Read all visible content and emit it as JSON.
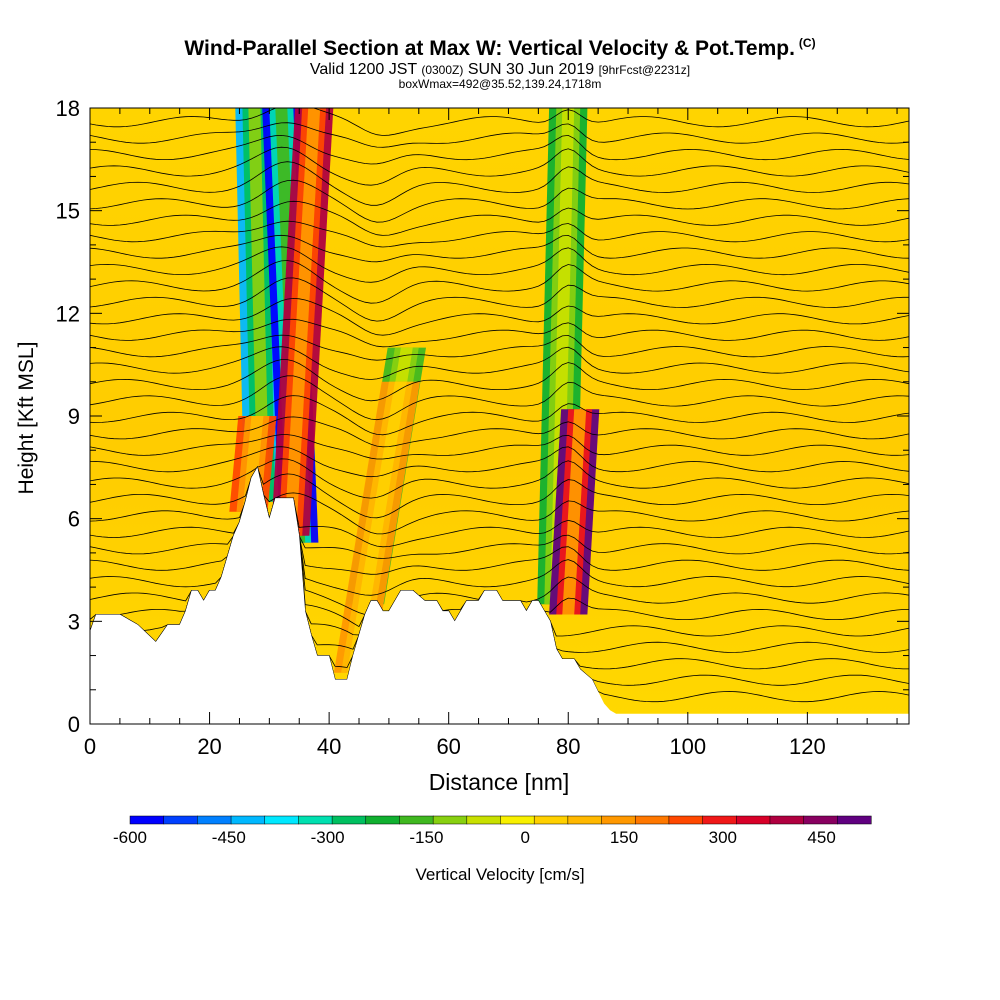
{
  "chart_data": {
    "type": "heatmap",
    "title": "Wind-Parallel Section at Max W: Vertical Velocity & Pot.Temp.",
    "title_mark": "(C)",
    "subtitle_valid": "Valid 1200 JST",
    "subtitle_utc": "(0300Z)",
    "subtitle_date": "SUN 30 Jun 2019",
    "subtitle_fcst": "[9hrFcst@2231z]",
    "subtitle2": "boxWmax=492@35.52,139.24,1718m",
    "xlabel": "Distance [nm]",
    "ylabel": "Height [Kft MSL]",
    "xlim": [
      0,
      137
    ],
    "ylim": [
      0,
      18
    ],
    "x_ticks": [
      "0",
      "20",
      "40",
      "60",
      "80",
      "100",
      "120"
    ],
    "x_tick_values": [
      0,
      20,
      40,
      60,
      80,
      100,
      120
    ],
    "y_ticks": [
      "0",
      "3",
      "6",
      "9",
      "12",
      "15",
      "18"
    ],
    "y_tick_values": [
      0,
      3,
      6,
      9,
      12,
      15,
      18
    ],
    "colorbar": {
      "label": "Vertical Velocity [cm/s]",
      "range": [
        -600,
        525
      ],
      "tick_labels": [
        "-600",
        "-450",
        "-300",
        "-150",
        "0",
        "150",
        "300",
        "450"
      ],
      "tick_values": [
        -600,
        -450,
        -300,
        -150,
        0,
        150,
        300,
        450
      ],
      "colors": [
        "#0000ff",
        "#0040ff",
        "#0080ff",
        "#00b8ff",
        "#00e8ff",
        "#00e0b0",
        "#00c060",
        "#10b030",
        "#40b820",
        "#88d010",
        "#c8e000",
        "#f8f000",
        "#ffd000",
        "#ffb800",
        "#ff9800",
        "#ff7800",
        "#ff4800",
        "#f01818",
        "#d80028",
        "#b00040",
        "#880060",
        "#600080"
      ]
    },
    "terrain_kft": [
      [
        0,
        2.7
      ],
      [
        1,
        3.2
      ],
      [
        5,
        3.2
      ],
      [
        8,
        2.9
      ],
      [
        11,
        2.4
      ],
      [
        13,
        2.9
      ],
      [
        15,
        2.9
      ],
      [
        16,
        3.3
      ],
      [
        17,
        3.9
      ],
      [
        18,
        3.9
      ],
      [
        19,
        3.6
      ],
      [
        20,
        3.9
      ],
      [
        21,
        3.9
      ],
      [
        22,
        4.3
      ],
      [
        23,
        4.9
      ],
      [
        24,
        5.5
      ],
      [
        25,
        5.9
      ],
      [
        26,
        6.5
      ],
      [
        27,
        7.2
      ],
      [
        28,
        7.5
      ],
      [
        29,
        6.7
      ],
      [
        30,
        6.0
      ],
      [
        31,
        6.6
      ],
      [
        34,
        6.6
      ],
      [
        35,
        5.5
      ],
      [
        36,
        3.3
      ],
      [
        37,
        2.6
      ],
      [
        38,
        2.0
      ],
      [
        40,
        2.0
      ],
      [
        41,
        1.3
      ],
      [
        43,
        1.3
      ],
      [
        44,
        2.0
      ],
      [
        45,
        2.6
      ],
      [
        46,
        3.2
      ],
      [
        47,
        3.6
      ],
      [
        48,
        3.6
      ],
      [
        49,
        3.3
      ],
      [
        50,
        3.3
      ],
      [
        51,
        3.6
      ],
      [
        52,
        3.9
      ],
      [
        54,
        3.9
      ],
      [
        56,
        3.6
      ],
      [
        58,
        3.6
      ],
      [
        59,
        3.3
      ],
      [
        60,
        3.3
      ],
      [
        61,
        3.0
      ],
      [
        62,
        3.3
      ],
      [
        63,
        3.6
      ],
      [
        65,
        3.6
      ],
      [
        66,
        3.9
      ],
      [
        68,
        3.9
      ],
      [
        69,
        3.6
      ],
      [
        72,
        3.6
      ],
      [
        73,
        3.3
      ],
      [
        74,
        3.6
      ],
      [
        75,
        3.6
      ],
      [
        77,
        3.0
      ],
      [
        78,
        2.2
      ],
      [
        79,
        1.9
      ],
      [
        81,
        1.9
      ],
      [
        82,
        1.6
      ],
      [
        84,
        1.3
      ],
      [
        86,
        0.6
      ],
      [
        87,
        0.4
      ],
      [
        88,
        0.3
      ],
      [
        137,
        0.3
      ]
    ],
    "updrafts": [
      {
        "x_base": 26.5,
        "x_top": 28,
        "z_bottom": 6.2,
        "z_top": 9.0,
        "w": 250
      },
      {
        "x_base": 33.5,
        "x_top": 37.5,
        "z_bottom": 5.5,
        "z_top": 18,
        "w": 420
      },
      {
        "x_base": 44,
        "x_top": 52,
        "z_bottom": 1.5,
        "z_top": 10,
        "w": 120
      },
      {
        "x_base": 80,
        "x_top": 82,
        "z_bottom": 3.2,
        "z_top": 9.2,
        "w": 480
      }
    ],
    "downdrafts": [
      {
        "x_base": 29,
        "x_top": 27.5,
        "z_bottom": 6.5,
        "z_top": 18,
        "w": -420
      },
      {
        "x_base": 35,
        "x_top": 32,
        "z_bottom": 5.3,
        "z_top": 18,
        "w": -560
      },
      {
        "x_base": 46,
        "x_top": 53,
        "z_bottom": 3.5,
        "z_top": 11,
        "w": -180
      },
      {
        "x_base": 78,
        "x_top": 80,
        "z_bottom": 3.5,
        "z_top": 18,
        "w": -200
      }
    ]
  }
}
